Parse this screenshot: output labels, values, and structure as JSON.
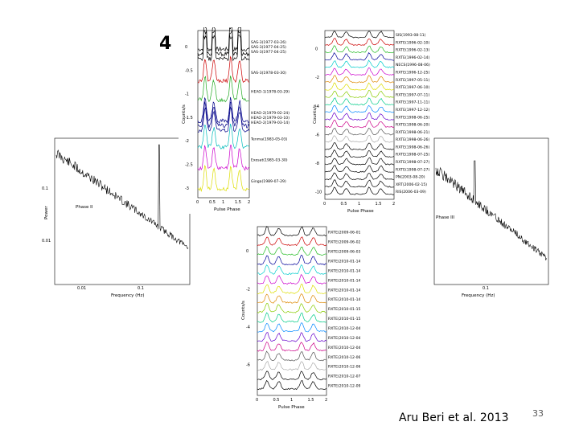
{
  "slide": {
    "figure_number": "4",
    "credit": "Aru Beri et al. 2013",
    "page_number": "33"
  },
  "chart_data": [
    {
      "type": "line",
      "id": "pulse_profiles_1",
      "xlabel": "Pulse Phase",
      "ylabel": "Counts/s",
      "x_ticks": [
        "0",
        "0.5",
        "1",
        "1.5",
        "2"
      ],
      "y_ticks": [
        "0",
        "-0.5",
        "-1",
        "-1.5",
        "-2",
        "-2.5",
        "-3"
      ],
      "series": [
        {
          "name": "SAS-3(1977-03-26)",
          "color": "#000000",
          "offset": 0.1
        },
        {
          "name": "SAS-3(1977-04-25)",
          "color": "#000000",
          "offset": 0.0
        },
        {
          "name": "SAS-3(1977-04-25)",
          "color": "#000000",
          "offset": -0.1
        },
        {
          "name": "SAS-3(1978-03-30)",
          "color": "#cc0000",
          "offset": -0.55
        },
        {
          "name": "HEAO-1(1978-03-29)",
          "color": "#22aa22",
          "offset": -0.95
        },
        {
          "name": "HEAO-2(1979-02-24)",
          "color": "#000088",
          "offset": -1.4
        },
        {
          "name": "HEAO-2(1979-03-10)",
          "color": "#000088",
          "offset": -1.5
        },
        {
          "name": "HEAO-2(1979-03-14)",
          "color": "#000088",
          "offset": -1.6
        },
        {
          "name": "Tenma(1983-05-03)",
          "color": "#00bbbb",
          "offset": -1.95
        },
        {
          "name": "Exosat(1985-03-30)",
          "color": "#cc00cc",
          "offset": -2.4
        },
        {
          "name": "Ginga(1989-07-29)",
          "color": "#dddd00",
          "offset": -2.85
        }
      ]
    },
    {
      "type": "line",
      "id": "pulse_profiles_2",
      "xlabel": "Pulse Phase",
      "ylabel": "Counts/s",
      "x_ticks": [
        "0",
        "0.5",
        "1",
        "1.5",
        "2"
      ],
      "y_ticks": [
        "0",
        "-2",
        "-4",
        "-6",
        "-8",
        "-10"
      ],
      "series": [
        {
          "name": "SIS(1993-08-11)",
          "color": "#000000"
        },
        {
          "name": "RXTE(1996-02-10)",
          "color": "#cc0000"
        },
        {
          "name": "RXTE(1996-02-13)",
          "color": "#22bb22"
        },
        {
          "name": "RXTE(1996-02-14)",
          "color": "#000099"
        },
        {
          "name": "NECS(1996-08-06)",
          "color": "#00cccc"
        },
        {
          "name": "RXTE(1996-12-25)",
          "color": "#cc00cc"
        },
        {
          "name": "RXTE(1997-05-11)",
          "color": "#dd8800"
        },
        {
          "name": "RXTE(1997-06-10)",
          "color": "#dddd00"
        },
        {
          "name": "RXTE(1997-07-11)",
          "color": "#88cc00"
        },
        {
          "name": "RXTE(1997-11-11)",
          "color": "#00cc88"
        },
        {
          "name": "RXTE(1997-12-12)",
          "color": "#0088ff"
        },
        {
          "name": "RXTE(1998-06-25)",
          "color": "#6600cc"
        },
        {
          "name": "RXTE(1998-06-20)",
          "color": "#cc0088"
        },
        {
          "name": "RXTE(1998-06-21)",
          "color": "#555555"
        },
        {
          "name": "RXTE(1998-06-26)",
          "color": "#aaaaaa"
        },
        {
          "name": "RXTE(1998-06-26)",
          "color": "#000000"
        },
        {
          "name": "RXTE(1998-07-25)",
          "color": "#000000"
        },
        {
          "name": "RXTE(1998-07-27)",
          "color": "#000000"
        },
        {
          "name": "RXTE(1998-07-27)",
          "color": "#000000"
        },
        {
          "name": "PN(2003-08-20)",
          "color": "#000000"
        },
        {
          "name": "XRT(2006-02-15)",
          "color": "#000000"
        },
        {
          "name": "RIS(2006-03-09)",
          "color": "#000000"
        }
      ]
    },
    {
      "type": "line",
      "id": "pulse_profiles_3",
      "xlabel": "Pulse Phase",
      "ylabel": "Counts/s",
      "x_ticks": [
        "0",
        "0.5",
        "1",
        "1.5",
        "2"
      ],
      "y_ticks": [
        "0",
        "-2",
        "-4",
        "-6"
      ],
      "series": [
        {
          "name": "RXTE(2009-06-01)",
          "color": "#000000"
        },
        {
          "name": "RXTE(2009-06-02)",
          "color": "#cc0000"
        },
        {
          "name": "RXTE(2009-06-03)",
          "color": "#22bb22"
        },
        {
          "name": "RXTE(2010-01-14)",
          "color": "#000099"
        },
        {
          "name": "RXTE(2010-01-14)",
          "color": "#00cccc"
        },
        {
          "name": "RXTE(2010-01-14)",
          "color": "#cc00cc"
        },
        {
          "name": "RXTE(2010-01-14)",
          "color": "#dddd00"
        },
        {
          "name": "RXTE(2010-01-14)",
          "color": "#dd8800"
        },
        {
          "name": "RXTE(2010-01-15)",
          "color": "#88cc00"
        },
        {
          "name": "RXTE(2010-01-15)",
          "color": "#00cc88"
        },
        {
          "name": "RXTE(2010-12-04)",
          "color": "#0088ff"
        },
        {
          "name": "RXTE(2010-12-04)",
          "color": "#6600cc"
        },
        {
          "name": "RXTE(2010-12-04)",
          "color": "#cc0088"
        },
        {
          "name": "RXTE(2010-12-06)",
          "color": "#555555"
        },
        {
          "name": "RXTE(2010-12-06)",
          "color": "#aaaaaa"
        },
        {
          "name": "RXTE(2010-12-07)",
          "color": "#000000"
        },
        {
          "name": "RXTE(2010-12-09)",
          "color": "#000000"
        }
      ]
    },
    {
      "type": "line",
      "id": "power_spectrum_left",
      "xlabel": "Frequency (Hz)",
      "ylabel": "Power",
      "annotation": "Phase II",
      "x_ticks": [
        "0.01",
        "0.1"
      ],
      "y_ticks": [
        "0.1",
        "0.01"
      ]
    },
    {
      "type": "line",
      "id": "power_spectrum_right",
      "xlabel": "Frequency (Hz)",
      "annotation": "Phase III",
      "x_ticks": [
        "0.1"
      ]
    }
  ]
}
